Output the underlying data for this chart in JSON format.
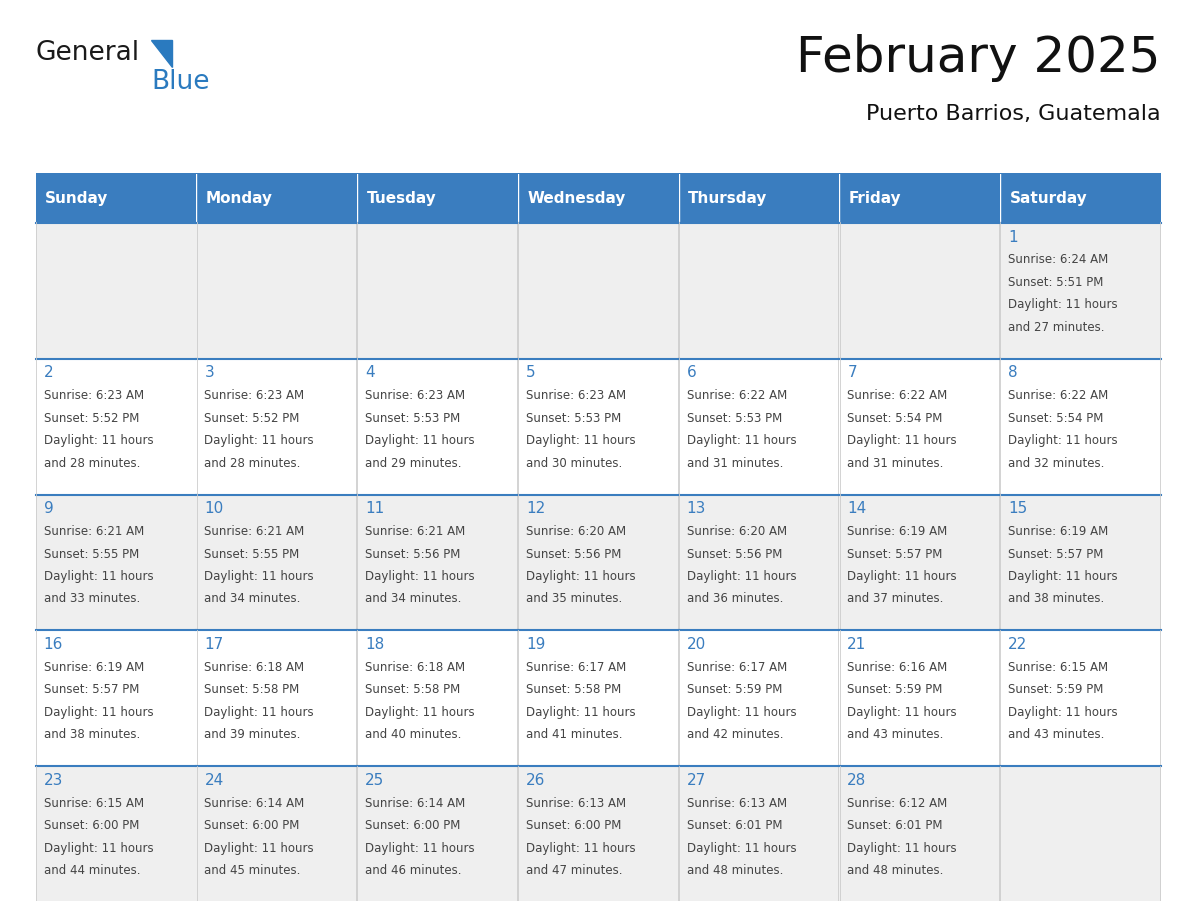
{
  "title": "February 2025",
  "subtitle": "Puerto Barrios, Guatemala",
  "header_color": "#3a7dbf",
  "header_text_color": "#ffffff",
  "cell_bg_color": "#ffffff",
  "alt_cell_bg_color": "#efefef",
  "day_number_color": "#3a7dbf",
  "text_color": "#444444",
  "border_color": "#3a7dbf",
  "days_of_week": [
    "Sunday",
    "Monday",
    "Tuesday",
    "Wednesday",
    "Thursday",
    "Friday",
    "Saturday"
  ],
  "weeks": [
    [
      {
        "day": null,
        "sunrise": null,
        "sunset": null,
        "daylight": null
      },
      {
        "day": null,
        "sunrise": null,
        "sunset": null,
        "daylight": null
      },
      {
        "day": null,
        "sunrise": null,
        "sunset": null,
        "daylight": null
      },
      {
        "day": null,
        "sunrise": null,
        "sunset": null,
        "daylight": null
      },
      {
        "day": null,
        "sunrise": null,
        "sunset": null,
        "daylight": null
      },
      {
        "day": null,
        "sunrise": null,
        "sunset": null,
        "daylight": null
      },
      {
        "day": 1,
        "sunrise": "6:24 AM",
        "sunset": "5:51 PM",
        "daylight": "11 hours\nand 27 minutes."
      }
    ],
    [
      {
        "day": 2,
        "sunrise": "6:23 AM",
        "sunset": "5:52 PM",
        "daylight": "11 hours\nand 28 minutes."
      },
      {
        "day": 3,
        "sunrise": "6:23 AM",
        "sunset": "5:52 PM",
        "daylight": "11 hours\nand 28 minutes."
      },
      {
        "day": 4,
        "sunrise": "6:23 AM",
        "sunset": "5:53 PM",
        "daylight": "11 hours\nand 29 minutes."
      },
      {
        "day": 5,
        "sunrise": "6:23 AM",
        "sunset": "5:53 PM",
        "daylight": "11 hours\nand 30 minutes."
      },
      {
        "day": 6,
        "sunrise": "6:22 AM",
        "sunset": "5:53 PM",
        "daylight": "11 hours\nand 31 minutes."
      },
      {
        "day": 7,
        "sunrise": "6:22 AM",
        "sunset": "5:54 PM",
        "daylight": "11 hours\nand 31 minutes."
      },
      {
        "day": 8,
        "sunrise": "6:22 AM",
        "sunset": "5:54 PM",
        "daylight": "11 hours\nand 32 minutes."
      }
    ],
    [
      {
        "day": 9,
        "sunrise": "6:21 AM",
        "sunset": "5:55 PM",
        "daylight": "11 hours\nand 33 minutes."
      },
      {
        "day": 10,
        "sunrise": "6:21 AM",
        "sunset": "5:55 PM",
        "daylight": "11 hours\nand 34 minutes."
      },
      {
        "day": 11,
        "sunrise": "6:21 AM",
        "sunset": "5:56 PM",
        "daylight": "11 hours\nand 34 minutes."
      },
      {
        "day": 12,
        "sunrise": "6:20 AM",
        "sunset": "5:56 PM",
        "daylight": "11 hours\nand 35 minutes."
      },
      {
        "day": 13,
        "sunrise": "6:20 AM",
        "sunset": "5:56 PM",
        "daylight": "11 hours\nand 36 minutes."
      },
      {
        "day": 14,
        "sunrise": "6:19 AM",
        "sunset": "5:57 PM",
        "daylight": "11 hours\nand 37 minutes."
      },
      {
        "day": 15,
        "sunrise": "6:19 AM",
        "sunset": "5:57 PM",
        "daylight": "11 hours\nand 38 minutes."
      }
    ],
    [
      {
        "day": 16,
        "sunrise": "6:19 AM",
        "sunset": "5:57 PM",
        "daylight": "11 hours\nand 38 minutes."
      },
      {
        "day": 17,
        "sunrise": "6:18 AM",
        "sunset": "5:58 PM",
        "daylight": "11 hours\nand 39 minutes."
      },
      {
        "day": 18,
        "sunrise": "6:18 AM",
        "sunset": "5:58 PM",
        "daylight": "11 hours\nand 40 minutes."
      },
      {
        "day": 19,
        "sunrise": "6:17 AM",
        "sunset": "5:58 PM",
        "daylight": "11 hours\nand 41 minutes."
      },
      {
        "day": 20,
        "sunrise": "6:17 AM",
        "sunset": "5:59 PM",
        "daylight": "11 hours\nand 42 minutes."
      },
      {
        "day": 21,
        "sunrise": "6:16 AM",
        "sunset": "5:59 PM",
        "daylight": "11 hours\nand 43 minutes."
      },
      {
        "day": 22,
        "sunrise": "6:15 AM",
        "sunset": "5:59 PM",
        "daylight": "11 hours\nand 43 minutes."
      }
    ],
    [
      {
        "day": 23,
        "sunrise": "6:15 AM",
        "sunset": "6:00 PM",
        "daylight": "11 hours\nand 44 minutes."
      },
      {
        "day": 24,
        "sunrise": "6:14 AM",
        "sunset": "6:00 PM",
        "daylight": "11 hours\nand 45 minutes."
      },
      {
        "day": 25,
        "sunrise": "6:14 AM",
        "sunset": "6:00 PM",
        "daylight": "11 hours\nand 46 minutes."
      },
      {
        "day": 26,
        "sunrise": "6:13 AM",
        "sunset": "6:00 PM",
        "daylight": "11 hours\nand 47 minutes."
      },
      {
        "day": 27,
        "sunrise": "6:13 AM",
        "sunset": "6:01 PM",
        "daylight": "11 hours\nand 48 minutes."
      },
      {
        "day": 28,
        "sunrise": "6:12 AM",
        "sunset": "6:01 PM",
        "daylight": "11 hours\nand 48 minutes."
      },
      {
        "day": null,
        "sunrise": null,
        "sunset": null,
        "daylight": null
      }
    ]
  ],
  "logo_color_general": "#1a1a1a",
  "logo_color_blue": "#2a7abf",
  "logo_triangle_color": "#2a7abf",
  "title_fontsize": 36,
  "subtitle_fontsize": 16,
  "header_fontsize": 11,
  "day_num_fontsize": 11,
  "cell_text_fontsize": 8.5
}
